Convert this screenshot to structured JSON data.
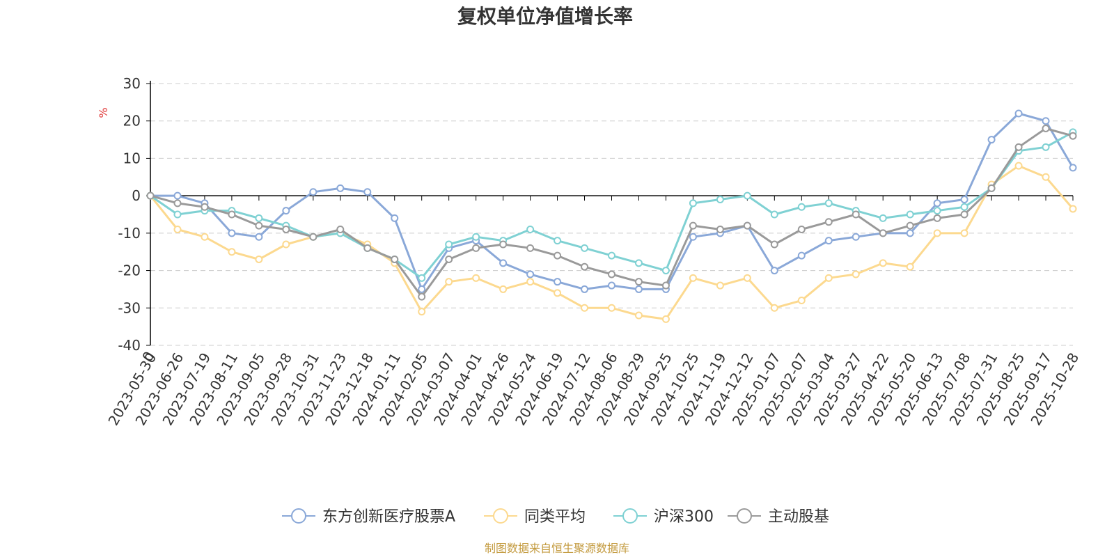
{
  "chart_data": {
    "type": "line",
    "title": "复权单位净值增长率",
    "ylabel": "%",
    "ylim": [
      -40,
      30
    ],
    "yticks": [
      "30",
      "20",
      "10",
      "0",
      "-10",
      "-20",
      "-30",
      "-40"
    ],
    "x_start_label": "0",
    "categories": [
      "2023-05-30",
      "2023-06-26",
      "2023-07-19",
      "2023-08-11",
      "2023-09-05",
      "2023-09-28",
      "2023-10-31",
      "2023-11-23",
      "2023-12-18",
      "2024-01-11",
      "2024-02-05",
      "2024-03-07",
      "2024-04-01",
      "2024-04-26",
      "2024-05-24",
      "2024-06-19",
      "2024-07-12",
      "2024-08-06",
      "2024-08-29",
      "2024-09-25",
      "2024-10-25",
      "2024-11-19",
      "2024-12-12",
      "2025-01-07",
      "2025-02-07",
      "2025-03-04",
      "2025-03-27",
      "2025-04-22",
      "2025-05-20",
      "2025-06-13",
      "2025-07-08",
      "2025-07-31",
      "2025-08-25",
      "2025-09-17",
      "2025-10-28"
    ],
    "series": [
      {
        "name": "东方创新医疗股票A",
        "color": "#8aa8d8",
        "values": [
          0,
          0,
          -2,
          -10,
          -11,
          -4,
          1,
          2,
          1,
          -6,
          -25,
          -14,
          -12,
          -18,
          -21,
          -23,
          -25,
          -24,
          -25,
          -25,
          -11,
          -10,
          -8,
          -20,
          -16,
          -12,
          -11,
          -10,
          -10,
          -2,
          -1,
          15,
          22,
          20,
          7.5
        ]
      },
      {
        "name": "同类平均",
        "color": "#fcd98f",
        "values": [
          0,
          -9,
          -11,
          -15,
          -17,
          -13,
          -11,
          -10,
          -13,
          -18,
          -31,
          -23,
          -22,
          -25,
          -23,
          -26,
          -30,
          -30,
          -32,
          -33,
          -22,
          -24,
          -22,
          -30,
          -28,
          -22,
          -21,
          -18,
          -19,
          -10,
          -10,
          3,
          8,
          5,
          -3.5
        ]
      },
      {
        "name": "沪深300",
        "color": "#7fd1d3",
        "values": [
          0,
          -5,
          -4,
          -4,
          -6,
          -8,
          -11,
          -10,
          -14,
          -17,
          -22,
          -13,
          -11,
          -12,
          -9,
          -12,
          -14,
          -16,
          -18,
          -20,
          -2,
          -1,
          0,
          -5,
          -3,
          -2,
          -4,
          -6,
          -5,
          -4,
          -3,
          2,
          12,
          13,
          17
        ]
      },
      {
        "name": "主动股基",
        "color": "#9a9a9a",
        "values": [
          0,
          -2,
          -3,
          -5,
          -8,
          -9,
          -11,
          -9,
          -14,
          -17,
          -27,
          -17,
          -14,
          -13,
          -14,
          -16,
          -19,
          -21,
          -23,
          -24,
          -8,
          -9,
          -8,
          -13,
          -9,
          -7,
          -5,
          -10,
          -8,
          -6,
          -5,
          2,
          13,
          18,
          16
        ]
      }
    ]
  },
  "source_note": "制图数据来自恒生聚源数据库",
  "colors": {
    "axis": "#000000",
    "grid": "#cccccc",
    "unit": "#e03a3a",
    "source": "#c39a3e"
  }
}
